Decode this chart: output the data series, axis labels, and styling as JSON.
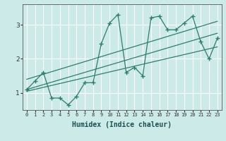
{
  "xlabel": "Humidex (Indice chaleur)",
  "bg_color": "#cceae8",
  "grid_color": "#ffffff",
  "line_color": "#2e7d6e",
  "xlim": [
    -0.5,
    23.5
  ],
  "ylim": [
    0.5,
    3.6
  ],
  "xticks": [
    0,
    1,
    2,
    3,
    4,
    5,
    6,
    7,
    8,
    9,
    10,
    11,
    12,
    13,
    14,
    15,
    16,
    17,
    18,
    19,
    20,
    21,
    22,
    23
  ],
  "yticks": [
    1,
    2,
    3
  ],
  "scatter_x": [
    0,
    1,
    2,
    3,
    4,
    5,
    6,
    7,
    8,
    9,
    10,
    11,
    12,
    13,
    14,
    15,
    16,
    17,
    18,
    19,
    20,
    21,
    22,
    23
  ],
  "scatter_y": [
    1.1,
    1.35,
    1.6,
    0.85,
    0.85,
    0.65,
    0.9,
    1.3,
    1.3,
    2.45,
    3.05,
    3.3,
    1.6,
    1.75,
    1.5,
    3.2,
    3.25,
    2.85,
    2.85,
    3.05,
    3.25,
    2.5,
    2.0,
    2.6
  ],
  "trend1_x": [
    0,
    23
  ],
  "trend1_y": [
    1.1,
    2.75
  ],
  "trend2_x": [
    0,
    23
  ],
  "trend2_y": [
    1.4,
    3.1
  ],
  "trend3_x": [
    0,
    23
  ],
  "trend3_y": [
    1.05,
    2.35
  ]
}
